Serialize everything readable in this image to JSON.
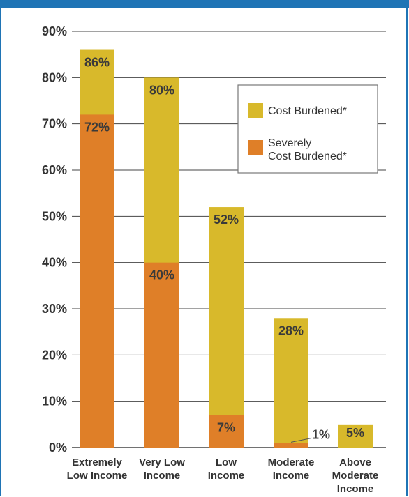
{
  "chart_data": {
    "type": "bar",
    "stacked": false,
    "categories": [
      [
        "Extremely",
        "Low Income"
      ],
      [
        "Very Low",
        "Income"
      ],
      [
        "Low",
        "Income"
      ],
      [
        "Moderate",
        "Income"
      ],
      [
        "Above",
        "Moderate",
        "Income"
      ]
    ],
    "series": [
      {
        "name": "Cost Burdened*",
        "color": "#d8b92b",
        "values": [
          86,
          80,
          52,
          28,
          5
        ],
        "labels": [
          "86%",
          "80%",
          "52%",
          "28%",
          "5%"
        ]
      },
      {
        "name": [
          "Severely",
          "Cost Burdened*"
        ],
        "color": "#df7f28",
        "values": [
          72,
          40,
          7,
          1,
          0
        ],
        "labels": [
          "72%",
          "40%",
          "7%",
          "1%",
          ""
        ]
      }
    ],
    "yticks": [
      "0%",
      "10%",
      "20%",
      "30%",
      "40%",
      "50%",
      "60%",
      "70%",
      "80%",
      "90%"
    ],
    "ylim": [
      0,
      90
    ],
    "grid": true,
    "legend": "top-right"
  }
}
